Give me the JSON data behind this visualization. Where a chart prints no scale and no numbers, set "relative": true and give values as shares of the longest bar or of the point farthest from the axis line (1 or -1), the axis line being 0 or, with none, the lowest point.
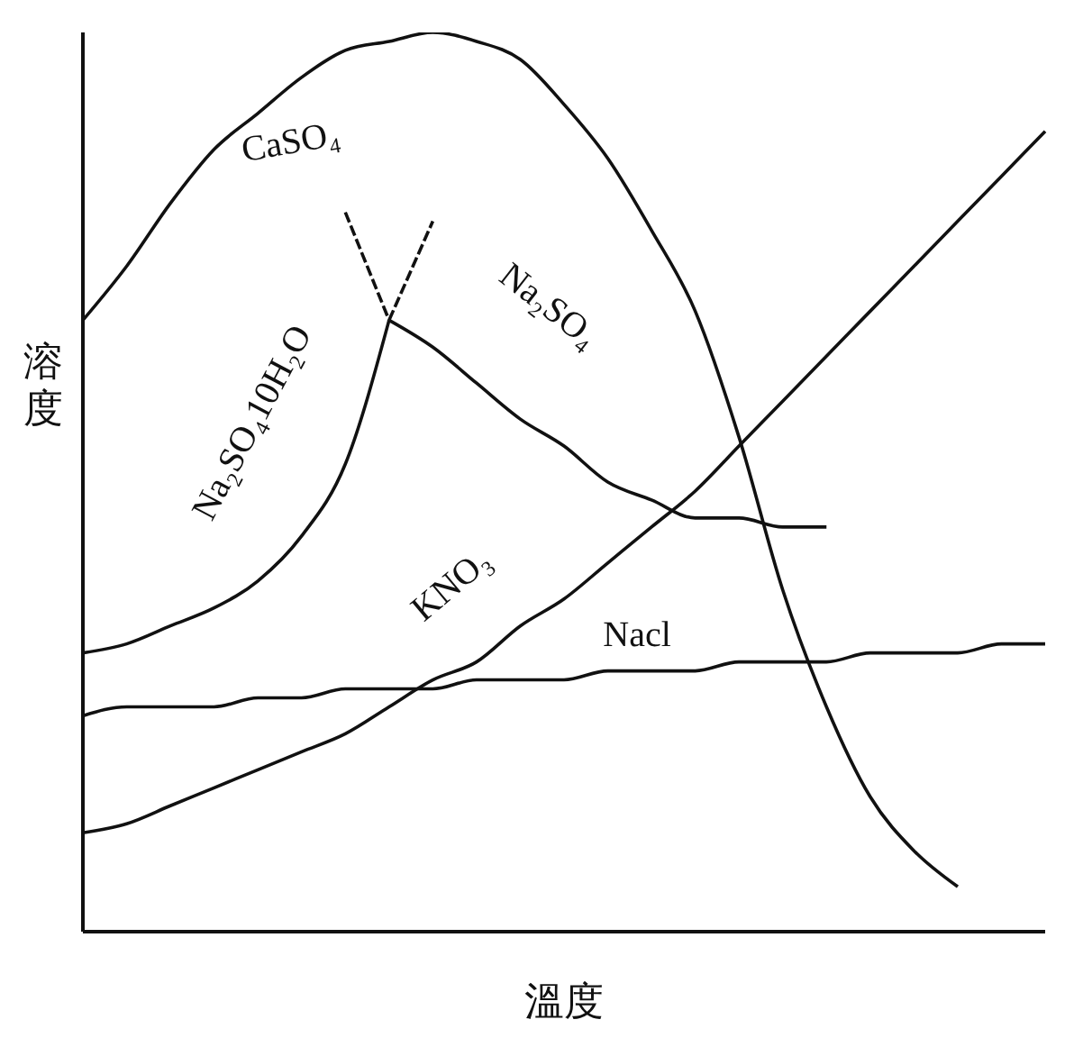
{
  "chart_data": {
    "type": "line",
    "relative": true,
    "xlabel": "溫度",
    "ylabel": "溶度",
    "grid": false,
    "legend": false,
    "marker": "none",
    "categories": [
      null,
      null,
      null,
      null,
      null,
      null,
      null,
      null,
      null,
      null,
      null,
      null,
      null,
      null,
      null,
      null,
      null,
      null,
      null,
      null,
      null,
      null,
      null
    ],
    "series": [
      {
        "name": "CaSO₄",
        "color": "#111111",
        "line_style": "solid",
        "values": [
          0.68,
          0.74,
          0.81,
          0.87,
          0.91,
          0.95,
          0.98,
          0.99,
          1,
          0.99,
          0.97,
          0.92,
          0.86,
          0.78,
          0.69,
          0.55,
          0.38,
          0.25,
          0.15,
          0.09,
          0.05,
          null,
          null
        ]
      },
      {
        "name": "Na₂SO₄10H₂O",
        "color": "#111111",
        "line_style": "solid",
        "values": [
          0.31,
          0.32,
          0.34,
          0.36,
          0.39,
          0.44,
          0.52,
          0.68,
          null,
          null,
          null,
          null,
          null,
          null,
          null,
          null,
          null,
          null,
          null,
          null,
          null,
          null,
          null
        ]
      },
      {
        "color": "#111111",
        "line_style": "dashed",
        "values": [
          null,
          null,
          null,
          null,
          null,
          null,
          null,
          0.68,
          0.79,
          null,
          null,
          null,
          null,
          null,
          null,
          null,
          null,
          null,
          null,
          null,
          null,
          null,
          null
        ]
      },
      {
        "name": "Na₂SO₄",
        "color": "#111111",
        "line_style": "solid",
        "values": [
          null,
          null,
          null,
          null,
          null,
          null,
          null,
          0.68,
          0.65,
          0.61,
          0.57,
          0.54,
          0.5,
          0.48,
          0.46,
          0.46,
          0.45,
          0.45,
          null,
          null,
          null,
          null,
          null
        ]
      },
      {
        "color": "#111111",
        "line_style": "dashed",
        "values": [
          null,
          null,
          null,
          null,
          null,
          null,
          0.8,
          0.68,
          null,
          null,
          null,
          null,
          null,
          null,
          null,
          null,
          null,
          null,
          null,
          null,
          null,
          null,
          null
        ]
      },
      {
        "name": "KNO₃",
        "color": "#111111",
        "line_style": "solid",
        "values": [
          0.11,
          0.12,
          0.14,
          0.16,
          0.18,
          0.2,
          0.22,
          0.25,
          0.28,
          0.3,
          0.34,
          0.37,
          0.41,
          0.45,
          0.49,
          0.54,
          0.59,
          0.64,
          0.69,
          0.74,
          0.79,
          0.84,
          0.89
        ]
      },
      {
        "name": "Nacl",
        "color": "#111111",
        "line_style": "solid",
        "values": [
          0.24,
          0.25,
          0.25,
          0.25,
          0.26,
          0.26,
          0.27,
          0.27,
          0.27,
          0.28,
          0.28,
          0.28,
          0.29,
          0.29,
          0.29,
          0.3,
          0.3,
          0.3,
          0.31,
          0.31,
          0.31,
          0.32,
          0.32
        ]
      }
    ]
  }
}
